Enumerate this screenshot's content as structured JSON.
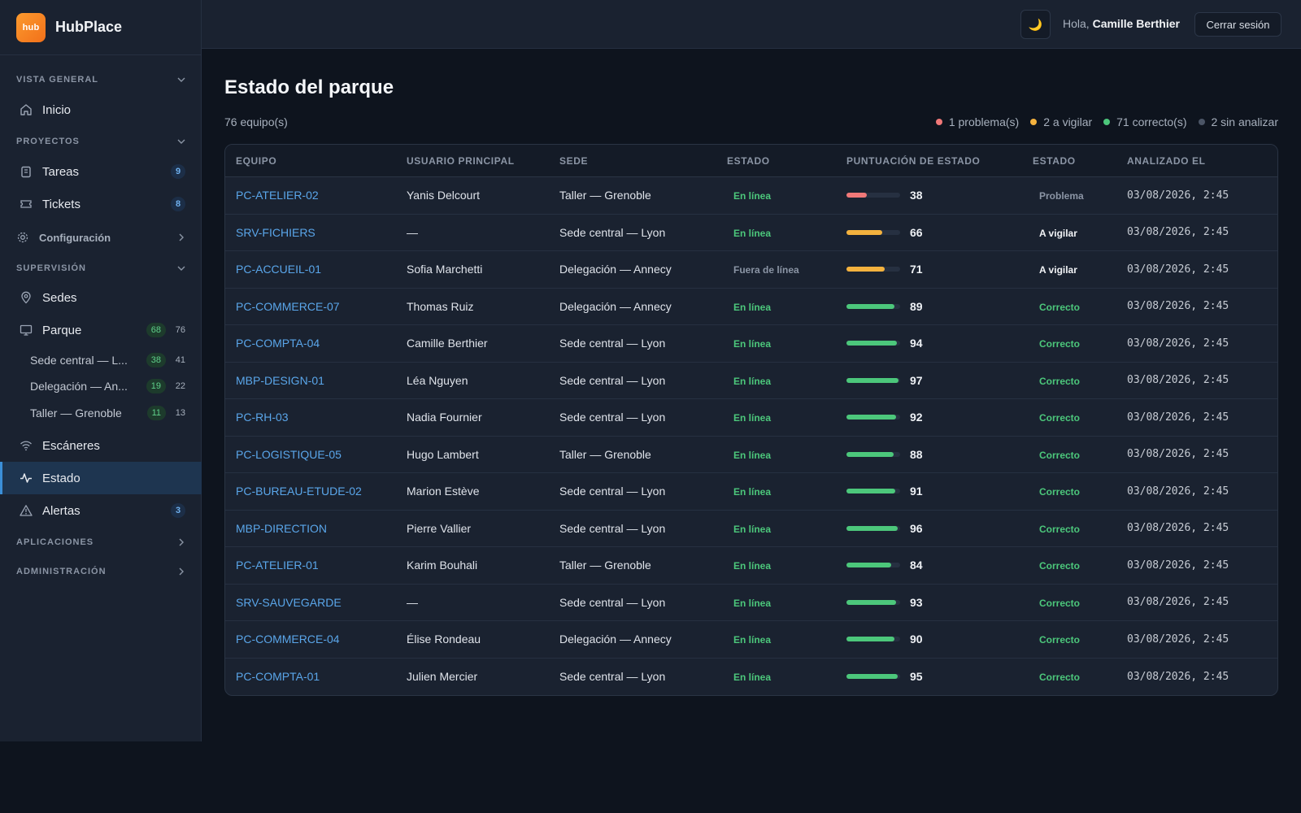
{
  "brand": {
    "logo_text": "hub",
    "name": "HubPlace"
  },
  "sidebar": {
    "vista_general": "VISTA GENERAL",
    "inicio": "Inicio",
    "proyectos": "PROYECTOS",
    "tareas": {
      "label": "Tareas",
      "count": "9"
    },
    "tickets": {
      "label": "Tickets",
      "count": "8"
    },
    "configuracion": "Configuración",
    "supervision": "SUPERVISIÓN",
    "sedes": "Sedes",
    "parque": {
      "label": "Parque",
      "ok": "68",
      "total": "76"
    },
    "sub": [
      {
        "label": "Sede central — L...",
        "ok": "38",
        "total": "41"
      },
      {
        "label": "Delegación — An...",
        "ok": "19",
        "total": "22"
      },
      {
        "label": "Taller — Grenoble",
        "ok": "11",
        "total": "13"
      }
    ],
    "escaneres": "Escáneres",
    "estado": "Estado",
    "alertas": {
      "label": "Alertas",
      "count": "3"
    },
    "aplicaciones": "APLICACIONES",
    "administracion": "ADMINISTRACIÓN"
  },
  "topbar": {
    "theme_icon": "moon-icon",
    "greeting": "Hola,",
    "user": "Camille Berthier",
    "logout": "Cerrar sesión"
  },
  "main": {
    "title": "Estado del parque",
    "count": "76 equipo(s)",
    "legend": [
      {
        "label": "1 problema(s)",
        "color": "#f07878"
      },
      {
        "label": "2 a vigilar",
        "color": "#f4b23e"
      },
      {
        "label": "71 correcto(s)",
        "color": "#4cc77b"
      },
      {
        "label": "2 sin analizar",
        "color": "#4b5566"
      }
    ],
    "columns": [
      "EQUIPO",
      "USUARIO PRINCIPAL",
      "SEDE",
      "ESTADO",
      "PUNTUACIÓN DE ESTADO",
      "ESTADO",
      "ANALIZADO EL"
    ],
    "rows": [
      {
        "equipo": "PC-ATELIER-02",
        "usuario": "Yanis Delcourt",
        "sede": "Taller — Grenoble",
        "conexion": "En línea",
        "score": 38,
        "estado": "Problema",
        "fecha": "03/08/2026, 2:45"
      },
      {
        "equipo": "SRV-FICHIERS",
        "usuario": "—",
        "sede": "Sede central — Lyon",
        "conexion": "En línea",
        "score": 66,
        "estado": "A vigilar",
        "fecha": "03/08/2026, 2:45"
      },
      {
        "equipo": "PC-ACCUEIL-01",
        "usuario": "Sofia Marchetti",
        "sede": "Delegación — Annecy",
        "conexion": "Fuera de línea",
        "score": 71,
        "estado": "A vigilar",
        "fecha": "03/08/2026, 2:45"
      },
      {
        "equipo": "PC-COMMERCE-07",
        "usuario": "Thomas Ruiz",
        "sede": "Delegación — Annecy",
        "conexion": "En línea",
        "score": 89,
        "estado": "Correcto",
        "fecha": "03/08/2026, 2:45"
      },
      {
        "equipo": "PC-COMPTA-04",
        "usuario": "Camille Berthier",
        "sede": "Sede central — Lyon",
        "conexion": "En línea",
        "score": 94,
        "estado": "Correcto",
        "fecha": "03/08/2026, 2:45"
      },
      {
        "equipo": "MBP-DESIGN-01",
        "usuario": "Léa Nguyen",
        "sede": "Sede central — Lyon",
        "conexion": "En línea",
        "score": 97,
        "estado": "Correcto",
        "fecha": "03/08/2026, 2:45"
      },
      {
        "equipo": "PC-RH-03",
        "usuario": "Nadia Fournier",
        "sede": "Sede central — Lyon",
        "conexion": "En línea",
        "score": 92,
        "estado": "Correcto",
        "fecha": "03/08/2026, 2:45"
      },
      {
        "equipo": "PC-LOGISTIQUE-05",
        "usuario": "Hugo Lambert",
        "sede": "Taller — Grenoble",
        "conexion": "En línea",
        "score": 88,
        "estado": "Correcto",
        "fecha": "03/08/2026, 2:45"
      },
      {
        "equipo": "PC-BUREAU-ETUDE-02",
        "usuario": "Marion Estève",
        "sede": "Sede central — Lyon",
        "conexion": "En línea",
        "score": 91,
        "estado": "Correcto",
        "fecha": "03/08/2026, 2:45"
      },
      {
        "equipo": "MBP-DIRECTION",
        "usuario": "Pierre Vallier",
        "sede": "Sede central — Lyon",
        "conexion": "En línea",
        "score": 96,
        "estado": "Correcto",
        "fecha": "03/08/2026, 2:45"
      },
      {
        "equipo": "PC-ATELIER-01",
        "usuario": "Karim Bouhali",
        "sede": "Taller — Grenoble",
        "conexion": "En línea",
        "score": 84,
        "estado": "Correcto",
        "fecha": "03/08/2026, 2:45"
      },
      {
        "equipo": "SRV-SAUVEGARDE",
        "usuario": "—",
        "sede": "Sede central — Lyon",
        "conexion": "En línea",
        "score": 93,
        "estado": "Correcto",
        "fecha": "03/08/2026, 2:45"
      },
      {
        "equipo": "PC-COMMERCE-04",
        "usuario": "Élise Rondeau",
        "sede": "Delegación — Annecy",
        "conexion": "En línea",
        "score": 90,
        "estado": "Correcto",
        "fecha": "03/08/2026, 2:45"
      },
      {
        "equipo": "PC-COMPTA-01",
        "usuario": "Julien Mercier",
        "sede": "Sede central — Lyon",
        "conexion": "En línea",
        "score": 95,
        "estado": "Correcto",
        "fecha": "03/08/2026, 2:45"
      }
    ]
  },
  "colors": {
    "problem": "#f07878",
    "watch": "#f4b23e",
    "ok": "#4cc77b",
    "accent": "#3b8fd8",
    "brand": "#f2701a"
  }
}
